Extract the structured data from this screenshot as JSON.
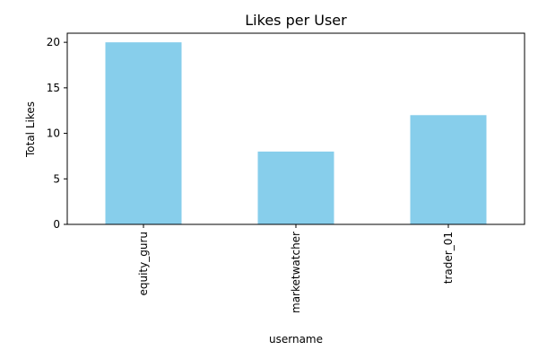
{
  "chart_data": {
    "type": "bar",
    "title": "Likes per User",
    "xlabel": "username",
    "ylabel": "Total Likes",
    "categories": [
      "equity_guru",
      "marketwatcher",
      "trader_01"
    ],
    "values": [
      20,
      8,
      12
    ],
    "ylim": [
      0,
      21
    ],
    "yticks": [
      0,
      5,
      10,
      15,
      20
    ],
    "bar_color": "#87ceeb",
    "grid": false,
    "legend": "none"
  }
}
